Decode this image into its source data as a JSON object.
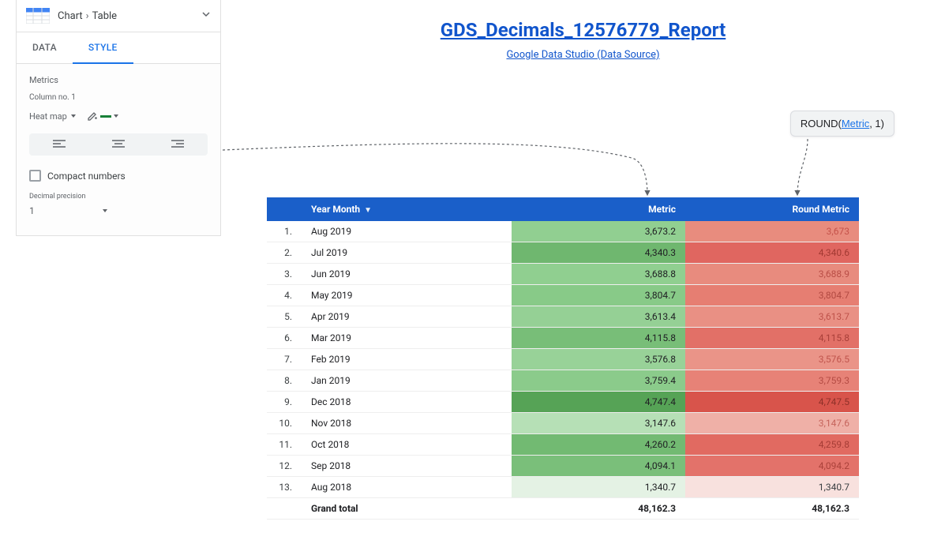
{
  "panel": {
    "breadcrumb_chart": "Chart",
    "breadcrumb_table": "Table",
    "tabs": {
      "data": "DATA",
      "style": "STYLE",
      "active": "style"
    },
    "metrics_label": "Metrics",
    "column_label": "Column no. 1",
    "heatmap_label": "Heat map",
    "heatmap_color": "#188038",
    "compact_label": "Compact numbers",
    "compact_checked": false,
    "precision_label": "Decimal precision",
    "precision_value": "1"
  },
  "report": {
    "title": "GDS_Decimals_12576779_Report",
    "subtitle": "Google Data Studio (Data Source)",
    "formula_prefix": "ROUND(",
    "formula_metric": "Metric",
    "formula_suffix": ", 1)"
  },
  "table": {
    "header_bg": "#1a5fc9",
    "header_fg": "#ffffff",
    "columns": {
      "year_month": "Year Month",
      "metric": "Metric",
      "round_metric": "Round Metric"
    },
    "sort_indicator": "▼",
    "grand_label": "Grand total",
    "grand_metric": "48,162.3",
    "grand_round": "48,162.3",
    "heat_green_scale": [
      "#d9ead3",
      "#9fd39f",
      "#8fcf8f",
      "#84c784",
      "#7bc07b",
      "#6fb76f",
      "#63ad63"
    ],
    "heat_red_scale": [
      "#f4c7c3",
      "#ea9999",
      "#e48b82",
      "#e06666",
      "#dd5b51",
      "#cc4125"
    ],
    "rows": [
      {
        "idx": "1.",
        "ym": "Aug 2019",
        "metric": "3,673.2",
        "round": "3,673",
        "m_bg": "#91cf91",
        "r_bg": "#e88c7e",
        "r_fg": "#c5524a"
      },
      {
        "idx": "2.",
        "ym": "Jul 2019",
        "metric": "4,340.3",
        "round": "4,340.6",
        "m_bg": "#6fb76f",
        "r_bg": "#e06660",
        "r_fg": "#a33a33"
      },
      {
        "idx": "3.",
        "ym": "Jun 2019",
        "metric": "3,688.8",
        "round": "3,688.9",
        "m_bg": "#90cf90",
        "r_bg": "#e88b7e",
        "r_fg": "#b94e46"
      },
      {
        "idx": "4.",
        "ym": "May 2019",
        "metric": "3,804.7",
        "round": "3,804.7",
        "m_bg": "#88ca88",
        "r_bg": "#e67e72",
        "r_fg": "#b24a42"
      },
      {
        "idx": "5.",
        "ym": "Apr 2019",
        "metric": "3,613.4",
        "round": "3,613.7",
        "m_bg": "#95d095",
        "r_bg": "#e99084",
        "r_fg": "#be524a"
      },
      {
        "idx": "6.",
        "ym": "Mar 2019",
        "metric": "4,115.8",
        "round": "4,115.8",
        "m_bg": "#78be78",
        "r_bg": "#e27067",
        "r_fg": "#a9403a"
      },
      {
        "idx": "7.",
        "ym": "Feb 2019",
        "metric": "3,576.8",
        "round": "3,576.5",
        "m_bg": "#98d298",
        "r_bg": "#ea9488",
        "r_fg": "#c0554d"
      },
      {
        "idx": "8.",
        "ym": "Jan 2019",
        "metric": "3,759.4",
        "round": "3,759.3",
        "m_bg": "#8bcb8b",
        "r_bg": "#e78277",
        "r_fg": "#b54c44"
      },
      {
        "idx": "9.",
        "ym": "Dec 2018",
        "metric": "4,747.4",
        "round": "4,747.5",
        "m_bg": "#56a356",
        "r_bg": "#d8544b",
        "r_fg": "#8f3129"
      },
      {
        "idx": "10.",
        "ym": "Nov 2018",
        "metric": "3,147.6",
        "round": "3,147.6",
        "m_bg": "#b6e0b6",
        "r_bg": "#efb0a7",
        "r_fg": "#c6655d"
      },
      {
        "idx": "11.",
        "ym": "Oct 2018",
        "metric": "4,260.2",
        "round": "4,259.8",
        "m_bg": "#72ba72",
        "r_bg": "#e16a61",
        "r_fg": "#a63d36"
      },
      {
        "idx": "12.",
        "ym": "Sep 2018",
        "metric": "4,094.1",
        "round": "4,094.2",
        "m_bg": "#7abf7a",
        "r_bg": "#e3726a",
        "r_fg": "#ab423b"
      },
      {
        "idx": "13.",
        "ym": "Aug 2018",
        "metric": "1,340.7",
        "round": "1,340.7",
        "m_bg": "#e4f2e4",
        "r_bg": "#f8e1de",
        "r_fg": "#3c4043"
      }
    ]
  }
}
